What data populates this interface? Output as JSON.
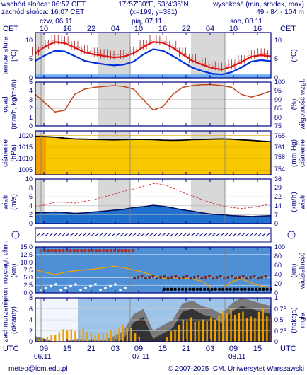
{
  "header": {
    "sunrise": "wschód słońca: 06:57 CET",
    "sunset": "zachód słońca: 16:07 CET",
    "coords": "17°57'30\"E, 53°4'35\"N",
    "grid": "(x=199, y=381)",
    "altitude_title": "wysokość (min, środek, max)",
    "altitude_values": "49 - 84 - 104 m"
  },
  "time_axis": {
    "top_zone": "CET",
    "bottom_zone": "UTC",
    "days": [
      "czw, 06.11",
      "pią, 07.11",
      "sob, 08.11"
    ],
    "top_hours": [
      "10",
      "16",
      "22",
      "04",
      "10",
      "16",
      "22",
      "04",
      "10",
      "16"
    ],
    "bottom_hours": [
      "09",
      "15",
      "21",
      "03",
      "09",
      "15",
      "21",
      "03",
      "09",
      "15"
    ],
    "bottom_days": [
      "06.11",
      "07.11",
      "08.11"
    ]
  },
  "footer": {
    "email": "meteo@icm.edu.pl",
    "copyright": "© 2007-2025 ICM, Uniwersytet Warszawski"
  },
  "colors": {
    "frame": "#000080",
    "night": "#d8d8d8",
    "temp": "#e01010",
    "dew": "#0030e0",
    "humidity": "#c04010",
    "pressure_fill": "#f8c800",
    "wind_fill": "#2070d0",
    "gust": "#d03030",
    "cloud_fill": "#3070c0",
    "fog": "#f0a000"
  },
  "chart_data": [
    {
      "type": "line",
      "ylabel_left": "temperatura",
      "unit_left": "[°C]",
      "ylabel_right": "(°C)",
      "ylim": [
        0,
        12
      ],
      "yticks_left": [
        "10",
        "5",
        "0"
      ],
      "yticks_right": [
        "10",
        "5",
        "0"
      ],
      "series": [
        {
          "values": [
            6.5,
            8.3,
            9.5,
            9.2,
            8.0,
            6.8,
            6.2,
            5.8,
            5.4,
            5.6,
            6.5,
            8.2,
            9.5,
            9.3,
            8.0,
            6.2,
            4.5,
            3.5,
            2.6,
            2.2,
            3.0,
            4.2,
            5.6,
            6.0,
            5.7
          ]
        },
        {
          "values": [
            4.5,
            6.0,
            7.2,
            7.0,
            5.8,
            4.5,
            4.0,
            3.6,
            3.3,
            3.5,
            4.3,
            6.2,
            7.6,
            7.2,
            5.8,
            4.2,
            2.7,
            1.8,
            1.1,
            0.9,
            1.5,
            2.8,
            4.3,
            4.7,
            4.4
          ]
        }
      ]
    },
    {
      "type": "line",
      "ylabel_left": "opad",
      "unit_left": "(mm/h, kg/m²/h)",
      "ylabel_right": "wilgotność wzgl.",
      "unit_right": "(%)",
      "ylim": [
        0,
        5
      ],
      "right_ylim": [
        75,
        100
      ],
      "yticks_left": [
        "5",
        "4",
        "3",
        "2",
        "1",
        "0"
      ],
      "yticks_right": [
        "100",
        "95",
        "90",
        "85",
        "80",
        "75"
      ],
      "series": [
        {
          "values": [
            93,
            88,
            83,
            84,
            93,
            96,
            97,
            97.5,
            98,
            97.5,
            96,
            90,
            84,
            86,
            93,
            97,
            98,
            98.5,
            98.5,
            98,
            97,
            93,
            91.5,
            93,
            95
          ]
        }
      ]
    },
    {
      "type": "area",
      "ylabel_left": "ciśnienie",
      "unit_left": "(hPa)",
      "ylabel_right": "ciśnienie",
      "unit_right": "(mm Hg)",
      "ylim": [
        1003,
        1022
      ],
      "yticks_left": [
        "1020",
        "1015",
        "1010",
        "1005"
      ],
      "yticks_right": [
        "765",
        "761",
        "758",
        "754"
      ],
      "series": [
        {
          "values": [
            1019.6,
            1019.5,
            1019.3,
            1018.8,
            1018.5,
            1018.4,
            1018.3,
            1018.2,
            1018.1,
            1018.2,
            1018.3,
            1018.3,
            1018.2,
            1018.0,
            1017.9,
            1018.0,
            1018.2,
            1018.3,
            1018.4,
            1018.5,
            1018.4,
            1018.1,
            1017.9,
            1017.6,
            1017.3
          ]
        }
      ]
    },
    {
      "type": "area",
      "ylabel_left": "wiatr",
      "unit_left": "(m/s)",
      "ylabel_right": "wiatr",
      "unit_right": "(km/h)",
      "ylim": [
        0,
        10
      ],
      "yticks_left": [
        "10",
        "8",
        "6",
        "4",
        "2",
        "0"
      ],
      "yticks_right": [
        "36",
        "29",
        "22",
        "14",
        "7",
        "0"
      ],
      "series": [
        {
          "values": [
            2.4,
            2.5,
            2.6,
            2.5,
            2.3,
            2.4,
            2.6,
            2.8,
            3.0,
            3.2,
            3.6,
            3.8,
            4.1,
            3.9,
            3.5,
            3.1,
            2.8,
            2.4,
            2.1,
            2.0,
            1.8,
            1.7,
            1.6,
            1.7,
            1.8
          ]
        },
        {
          "values": [
            3.8,
            4.2,
            4.8,
            4.8,
            4.6,
            5.0,
            5.4,
            6.0,
            6.6,
            7.2,
            7.8,
            8.4,
            9.0,
            8.8,
            8.0,
            7.0,
            6.2,
            5.4,
            4.6,
            4.0,
            3.6,
            3.4,
            3.6,
            4.0,
            4.4
          ]
        }
      ]
    },
    {
      "type": "line",
      "ylabel_left": "pion. rozciągł. chm.",
      "unit_left": "(km)",
      "ylabel_right": "widzialność",
      "unit_right": "(km)",
      "ylim": [
        0,
        15
      ],
      "right_ylim": [
        0,
        100
      ],
      "yticks_left": [
        "15.0",
        "12.5",
        "10.0",
        "7.5",
        "5.0",
        "2.5",
        "0.0"
      ],
      "yticks_right": [
        "100",
        "80",
        "60",
        "40",
        "20",
        "0"
      ],
      "series": [
        {
          "values": [
            50,
            45,
            40,
            45,
            48,
            50,
            52,
            55,
            58,
            55,
            50,
            45,
            38,
            32,
            30,
            32,
            30,
            25,
            10,
            8,
            25,
            30,
            22,
            15,
            12
          ]
        }
      ]
    },
    {
      "type": "bar",
      "ylabel_left": "zachmurzenie",
      "unit_left": "(oktanty)",
      "ylabel_right": "mgła",
      "unit_right": "(frakcja)",
      "ylim": [
        0,
        8
      ],
      "right_ylim": [
        0,
        1
      ],
      "yticks_left": [
        "8",
        "6",
        "4",
        "2",
        "0"
      ],
      "yticks_right": [
        "1",
        "0.75",
        "0.5",
        "0.25",
        "0"
      ],
      "series": [
        {
          "values": [
            1.0,
            0.5,
            0.0,
            0.0,
            0.5,
            0.4,
            0.3,
            0.3,
            1.0,
            2.0,
            5.0,
            6.0,
            2.0,
            3.0,
            4.0,
            7.0,
            7.5,
            6.5,
            6.0,
            5.0,
            7.0,
            8.0,
            7.5,
            7.0,
            6.5
          ]
        },
        {
          "values": [
            0,
            0.1,
            0.2,
            0.3,
            0.3,
            0.3,
            0.2,
            0.2,
            0.3,
            0.4,
            0.3,
            0,
            0,
            0,
            0.3,
            0.5,
            0.6,
            0.5,
            0.6,
            0.7,
            0.8,
            0.7,
            0.6,
            0.8,
            0.6
          ]
        }
      ]
    }
  ]
}
